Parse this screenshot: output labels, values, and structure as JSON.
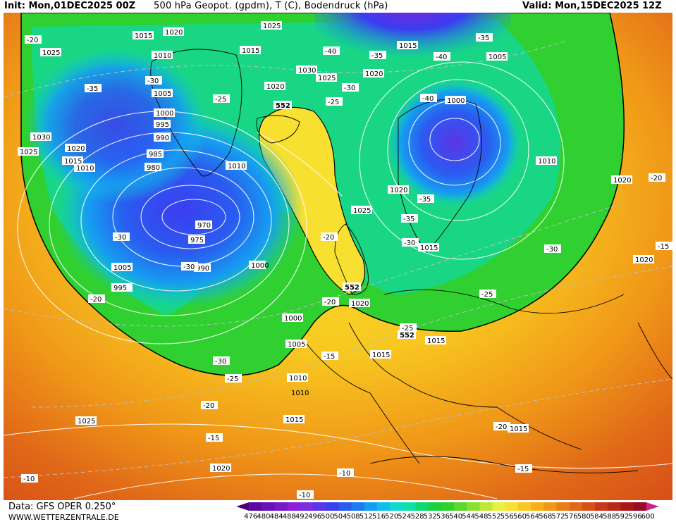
{
  "header": {
    "init": "Init: Mon,01DEC2025 00Z",
    "title": "500 hPa Geopot. (gpdm), T (C), Bodendruck (hPa)",
    "valid": "Valid: Mon,15DEC2025 12Z"
  },
  "footer": {
    "data_source": "Data: GFS OPER 0.250°",
    "website": "WWW.WETTERZENTRALE.DE"
  },
  "legend": {
    "values": [
      "476",
      "480",
      "484",
      "488",
      "492",
      "496",
      "500",
      "504",
      "508",
      "512",
      "516",
      "520",
      "524",
      "528",
      "532",
      "536",
      "540",
      "544",
      "548",
      "552",
      "556",
      "560",
      "564",
      "568",
      "572",
      "576",
      "580",
      "584",
      "588",
      "592",
      "596",
      "600"
    ],
    "colors": [
      "#4b0082",
      "#5a0aa0",
      "#6a10b8",
      "#7a18c8",
      "#8a20d8",
      "#7a2ee0",
      "#5b35e8",
      "#3b3df0",
      "#2a5cf0",
      "#1d7bf0",
      "#159ef0",
      "#10bfe8",
      "#10d8d0",
      "#10e0a8",
      "#10d870",
      "#18d040",
      "#30d030",
      "#5ad830",
      "#8ae030",
      "#bde838",
      "#e8f040",
      "#f8e030",
      "#f8c820",
      "#f8b018",
      "#f09818",
      "#e88018",
      "#e06818",
      "#d85018",
      "#c83818",
      "#b82818",
      "#a81818",
      "#980c28",
      "#cc2288"
    ]
  },
  "map_labels": {
    "pressure": [
      "1015",
      "1020",
      "1025",
      "1010",
      "1005",
      "1000",
      "995",
      "990",
      "985",
      "980",
      "975",
      "970",
      "1030",
      "1025",
      "1020",
      "1015",
      "1010",
      "1005",
      "1000",
      "995",
      "990",
      "1025",
      "1030",
      "1020",
      "1015",
      "1010",
      "1005",
      "1000",
      "1020",
      "1025",
      "1015",
      "1020",
      "1025",
      "1010",
      "1020",
      "1015",
      "1015",
      "1015",
      "1010",
      "1015",
      "1020",
      "1025",
      "1020",
      "1010",
      "1015",
      "1020",
      "1005",
      "1000"
    ],
    "temperature": [
      "-20",
      "-35",
      "-30",
      "-25",
      "-30",
      "-30",
      "-40",
      "-35",
      "-35",
      "-40",
      "-30",
      "-25",
      "-35",
      "-25",
      "-30",
      "-40",
      "-35",
      "-30",
      "-25",
      "-20",
      "-25",
      "-30",
      "-20",
      "-20",
      "-15",
      "-20",
      "-15",
      "-15",
      "-10",
      "-10",
      "-10",
      "-20",
      "-15",
      "-20"
    ],
    "geopotential": [
      "552",
      "552",
      "552"
    ]
  }
}
